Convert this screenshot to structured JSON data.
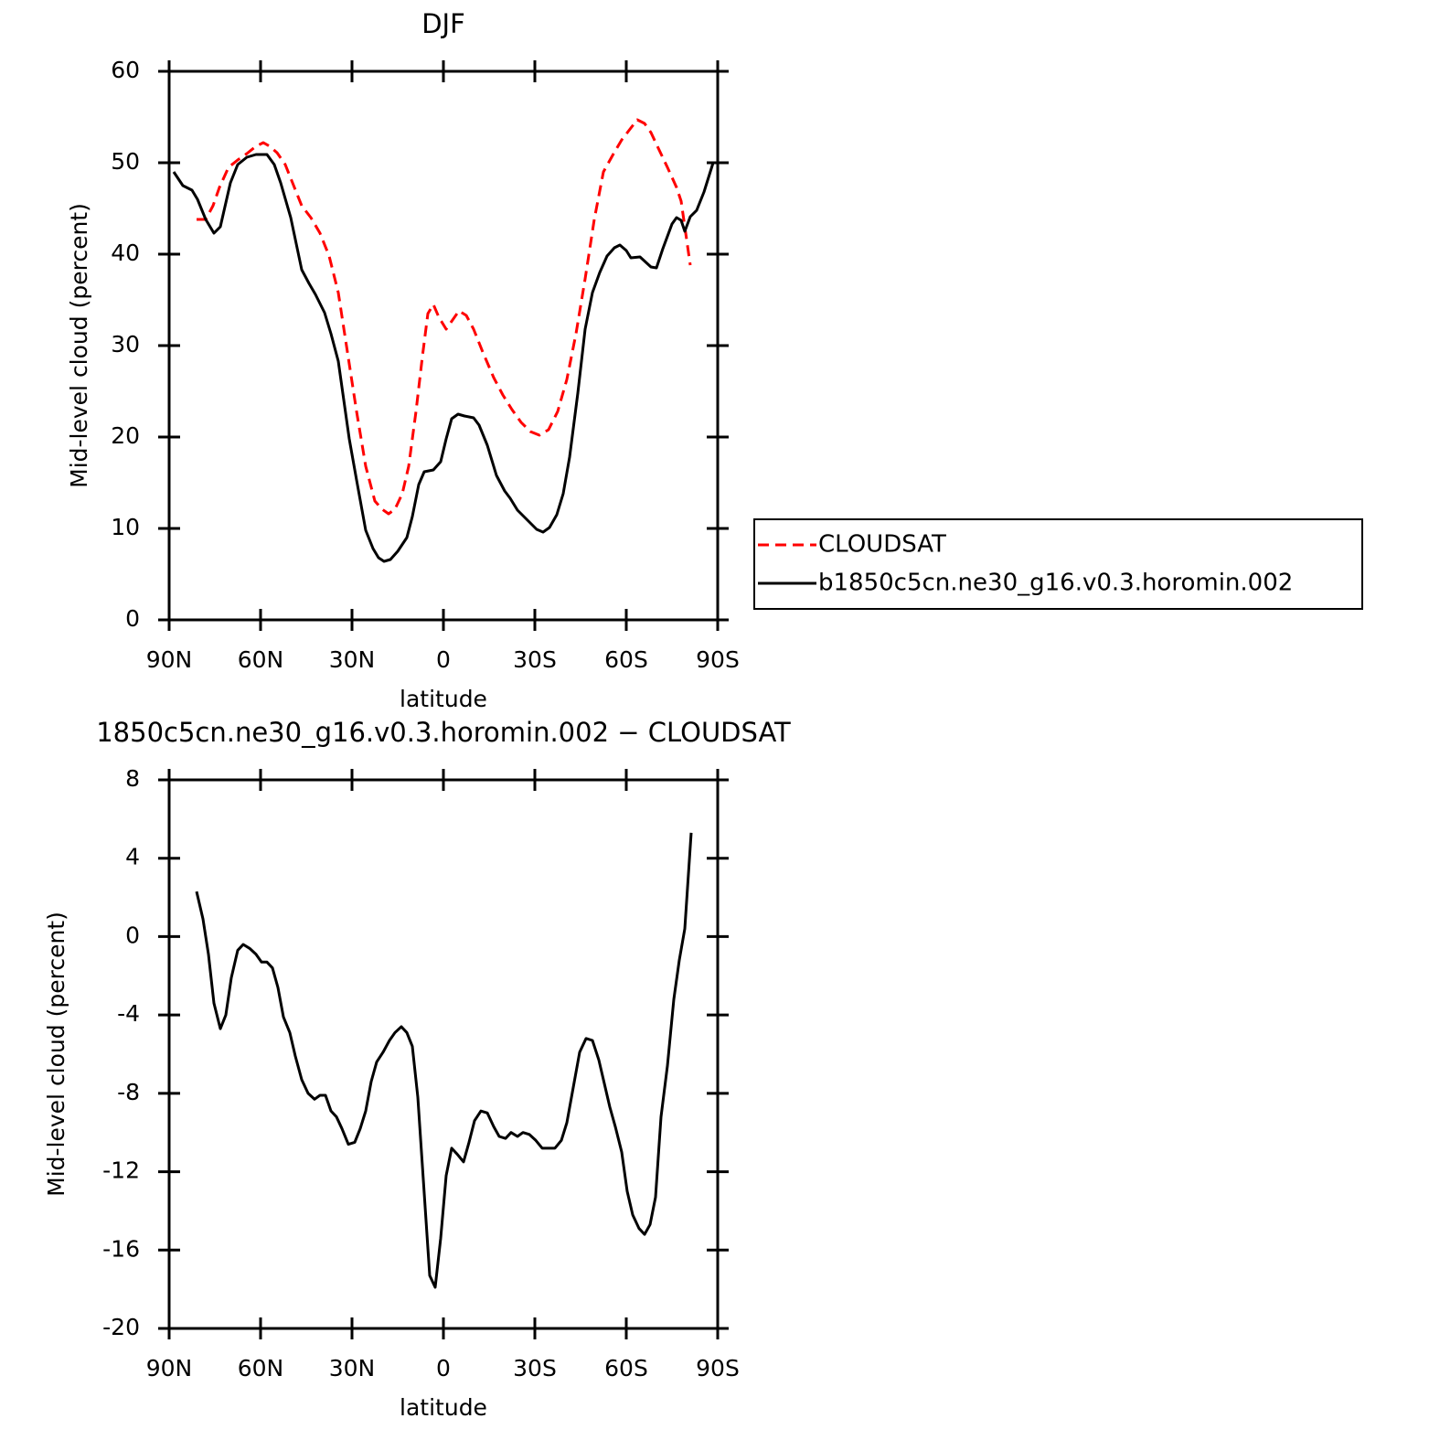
{
  "chart_data": [
    {
      "type": "line",
      "title": "DJF",
      "x_label": "latitude",
      "y_label": "Mid-level cloud (percent)",
      "xlim": [
        90,
        -90
      ],
      "xticks": [
        {
          "value": 90,
          "label": "90N"
        },
        {
          "value": 60,
          "label": "60N"
        },
        {
          "value": 30,
          "label": "30N"
        },
        0,
        {
          "value": -30,
          "label": "30S"
        },
        {
          "value": -60,
          "label": "60S"
        },
        {
          "value": -90,
          "label": "90S"
        }
      ],
      "ylim": [
        0,
        60
      ],
      "yticks": [
        0,
        10,
        20,
        30,
        40,
        50,
        60
      ],
      "legend": "right",
      "series": [
        {
          "name": "CLOUDSAT",
          "color": "#ff0000",
          "style": "dashed",
          "x": [
            81,
            78,
            75.6,
            73.5,
            70.5,
            67.5,
            64.5,
            61.5,
            59.1,
            57,
            54.6,
            51.9,
            49.5,
            46.5,
            43.5,
            40.5,
            37.5,
            34.5,
            31.5,
            28.5,
            25.5,
            22.5,
            20.1,
            18,
            15.9,
            13.5,
            11.4,
            9,
            6.9,
            5.1,
            3.3,
            1.5,
            -0.9,
            -3,
            -5.1,
            -7.5,
            -9.9,
            -12.9,
            -16.5,
            -19.5,
            -22.5,
            -25.5,
            -28.5,
            -31.5,
            -34.5,
            -37.5,
            -40.5,
            -43.5,
            -46.5,
            -49.5,
            -52.5,
            -55.5,
            -58.5,
            -61.5,
            -63.6,
            -66,
            -68.1,
            -70.5,
            -73.5,
            -76.5,
            -78,
            -79.5,
            -81
          ],
          "values": [
            43.8,
            43.8,
            45.3,
            47.3,
            49.5,
            50.3,
            51.0,
            51.8,
            52.2,
            51.8,
            51.1,
            49.8,
            47.8,
            45.3,
            44.0,
            42.3,
            39.8,
            35.8,
            29.3,
            22.8,
            16.8,
            13.0,
            12.1,
            11.6,
            12.1,
            13.8,
            16.8,
            22.8,
            28.8,
            33.5,
            34.5,
            33.1,
            31.8,
            32.8,
            33.8,
            33.3,
            31.8,
            29.3,
            26.5,
            24.6,
            23.0,
            21.6,
            20.6,
            20.2,
            20.8,
            22.8,
            26.3,
            31.3,
            37.3,
            43.8,
            49.0,
            50.8,
            52.5,
            53.8,
            54.7,
            54.3,
            53.3,
            51.6,
            49.5,
            47.3,
            45.8,
            42.3,
            38.8
          ]
        },
        {
          "name": "b1850c5cn.ne30_g16.v0.3.horomin.002",
          "color": "#000000",
          "style": "solid",
          "x": [
            88.5,
            85.5,
            82.5,
            80.7,
            78,
            75.3,
            73.2,
            69.9,
            67.5,
            64.5,
            61.5,
            57.9,
            55.5,
            53.4,
            50.1,
            46.5,
            44.1,
            42,
            39,
            36.9,
            34.5,
            30.9,
            28.5,
            25.5,
            23.1,
            21.3,
            19.5,
            17.4,
            15,
            12,
            10.2,
            8.1,
            6.3,
            3.3,
            0.9,
            -0.9,
            -2.7,
            -4.8,
            -6.9,
            -9.9,
            -11.7,
            -14.4,
            -17.4,
            -20.1,
            -21.9,
            -24.3,
            -27.9,
            -30.6,
            -32.7,
            -34.8,
            -37.2,
            -39.3,
            -41.4,
            -44.1,
            -46.5,
            -48.9,
            -51.3,
            -53.7,
            -56.1,
            -57.9,
            -60,
            -61.5,
            -64.5,
            -68.1,
            -69.9,
            -72,
            -75,
            -76.5,
            -78,
            -79.2,
            -81,
            -83.1,
            -85.5,
            -88.5
          ],
          "values": [
            49.0,
            47.5,
            47.0,
            46.0,
            43.8,
            42.3,
            43.0,
            47.8,
            49.8,
            50.6,
            50.9,
            50.9,
            49.8,
            47.8,
            44.0,
            38.3,
            36.8,
            35.6,
            33.6,
            31.3,
            28.3,
            19.8,
            15.3,
            9.8,
            7.8,
            6.8,
            6.4,
            6.6,
            7.5,
            9.0,
            11.3,
            14.8,
            16.2,
            16.4,
            17.3,
            19.8,
            22.0,
            22.5,
            22.3,
            22.1,
            21.3,
            19.1,
            15.8,
            14.1,
            13.3,
            12.0,
            10.8,
            9.9,
            9.6,
            10.1,
            11.5,
            13.8,
            17.8,
            24.8,
            31.8,
            35.8,
            38.0,
            39.8,
            40.7,
            41.0,
            40.4,
            39.6,
            39.7,
            38.6,
            38.5,
            40.6,
            43.3,
            44.0,
            43.7,
            42.5,
            44.1,
            44.8,
            46.8,
            50.0
          ]
        }
      ]
    },
    {
      "type": "line",
      "title": "1850c5cn.ne30_g16.v0.3.horomin.002 − CLOUDSAT",
      "x_label": "latitude",
      "y_label": "Mid-level cloud (percent)",
      "xlim": [
        90,
        -90
      ],
      "xticks": [
        {
          "value": 90,
          "label": "90N"
        },
        {
          "value": 60,
          "label": "60N"
        },
        {
          "value": 30,
          "label": "30N"
        },
        0,
        {
          "value": -30,
          "label": "30S"
        },
        {
          "value": -60,
          "label": "60S"
        },
        {
          "value": -90,
          "label": "90S"
        }
      ],
      "ylim": [
        -20,
        8
      ],
      "yticks": [
        -20,
        -16,
        -12,
        -8,
        -4,
        0,
        4,
        8
      ],
      "series": [
        {
          "color": "#000000",
          "style": "solid",
          "x": [
            81,
            78.9,
            77.1,
            75.3,
            73.2,
            71.4,
            69.6,
            67.5,
            65.7,
            63.6,
            61.5,
            59.7,
            57.9,
            56.1,
            54.3,
            52.5,
            50.4,
            48.6,
            46.5,
            44.4,
            42.3,
            40.5,
            38.7,
            36.9,
            35.1,
            33.3,
            31.2,
            29.1,
            27.3,
            25.5,
            23.7,
            21.9,
            19.8,
            17.7,
            15.9,
            13.8,
            12,
            10.2,
            8.4,
            6.6,
            4.5,
            2.7,
            0.9,
            -0.9,
            -2.7,
            -4.5,
            -6.6,
            -8.4,
            -10.2,
            -12.3,
            -14.4,
            -16.5,
            -18.3,
            -20.4,
            -22.2,
            -24.3,
            -26.1,
            -28.2,
            -30.3,
            -32.4,
            -34.5,
            -36.6,
            -38.7,
            -40.5,
            -42.6,
            -44.7,
            -46.8,
            -48.9,
            -51,
            -52.8,
            -54.6,
            -56.4,
            -58.5,
            -60.3,
            -62.1,
            -64.2,
            -66,
            -67.8,
            -69.6,
            -71.4,
            -73.5,
            -75.6,
            -77.4,
            -79.2,
            -81.3
          ],
          "values": [
            2.3,
            0.9,
            -0.9,
            -3.4,
            -4.7,
            -4.0,
            -2.1,
            -0.7,
            -0.4,
            -0.6,
            -0.9,
            -1.3,
            -1.3,
            -1.6,
            -2.6,
            -4.1,
            -4.9,
            -6.1,
            -7.3,
            -8.0,
            -8.3,
            -8.1,
            -8.1,
            -8.9,
            -9.2,
            -9.8,
            -10.6,
            -10.5,
            -9.8,
            -8.9,
            -7.4,
            -6.4,
            -5.9,
            -5.3,
            -4.9,
            -4.6,
            -4.9,
            -5.6,
            -8.2,
            -12.4,
            -17.3,
            -17.9,
            -15.4,
            -12.2,
            -10.8,
            -11.1,
            -11.5,
            -10.5,
            -9.4,
            -8.9,
            -9.0,
            -9.7,
            -10.2,
            -10.3,
            -10.0,
            -10.2,
            -10.0,
            -10.1,
            -10.4,
            -10.8,
            -10.8,
            -10.8,
            -10.4,
            -9.5,
            -7.7,
            -5.9,
            -5.2,
            -5.3,
            -6.3,
            -7.5,
            -8.7,
            -9.7,
            -11.0,
            -13.0,
            -14.2,
            -14.9,
            -15.2,
            -14.7,
            -13.3,
            -9.2,
            -6.6,
            -3.2,
            -1.2,
            0.4,
            5.3
          ]
        }
      ]
    }
  ]
}
